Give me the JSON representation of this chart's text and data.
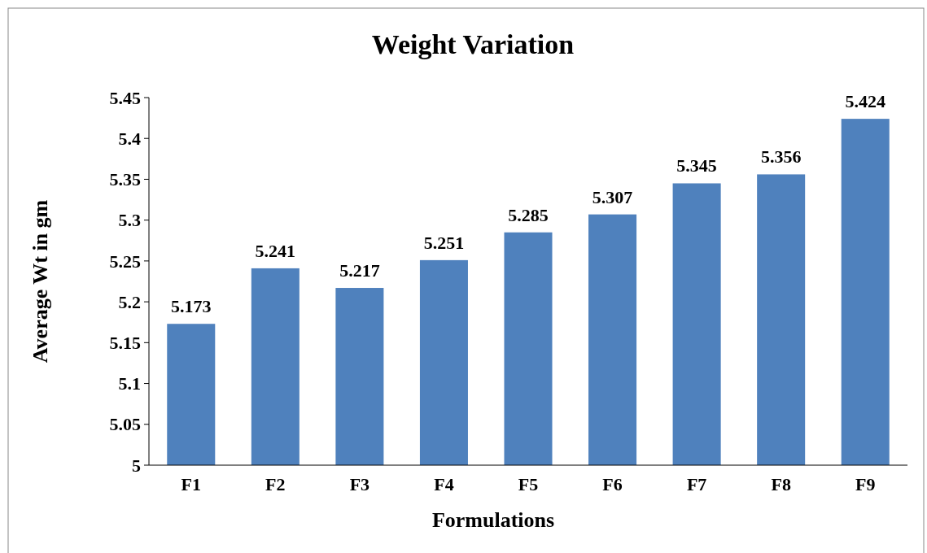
{
  "chart_data": {
    "type": "bar",
    "title": "Weight Variation",
    "xlabel": "Formulations",
    "ylabel": "Average Wt in gm",
    "categories": [
      "F1",
      "F2",
      "F3",
      "F4",
      "F5",
      "F6",
      "F7",
      "F8",
      "F9"
    ],
    "values": [
      5.173,
      5.241,
      5.217,
      5.251,
      5.285,
      5.307,
      5.345,
      5.356,
      5.424
    ],
    "color": "#4f81bd",
    "ylim": [
      5,
      5.45
    ],
    "yticks": [
      5,
      5.05,
      5.1,
      5.15,
      5.2,
      5.25,
      5.3,
      5.35,
      5.4,
      5.45
    ],
    "data_labels": true,
    "grid": false
  }
}
